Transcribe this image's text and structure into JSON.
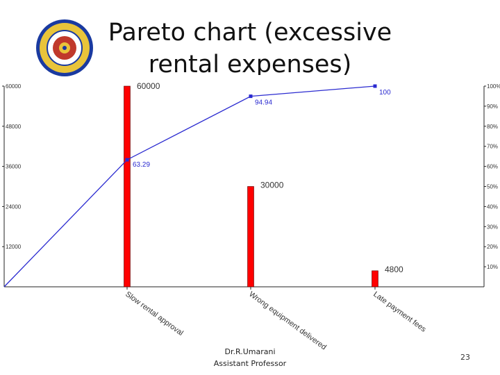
{
  "slide": {
    "title": "Pareto chart (excessive rental expenses)",
    "author": "Dr.R.Umarani",
    "role": "Assistant Professor",
    "page_number": "23"
  },
  "colors": {
    "bar": "#ff0000",
    "bar_edge": "#550000",
    "line": "#2a2ad0",
    "axis": "#222222"
  },
  "chart_data": {
    "type": "bar",
    "categories": [
      "Slow rental approval",
      "Wrong equipment delivered",
      "Late payment fees"
    ],
    "values": [
      60000,
      30000,
      4800
    ],
    "value_labels": [
      "60000",
      "30000",
      "4800"
    ],
    "cumulative_percent": [
      63.29,
      94.94,
      100
    ],
    "cumulative_labels": [
      "63.29",
      "94.94",
      "100"
    ],
    "ylim": [
      0,
      60000
    ],
    "y_ticks": [
      "60000",
      "48000",
      "36000",
      "24000",
      "12000"
    ],
    "y2lim": [
      0,
      100
    ],
    "y2_ticks": [
      "100%",
      "90%",
      "80%",
      "70%",
      "60%",
      "50%",
      "40%",
      "30%",
      "20%",
      "10%"
    ],
    "title": "",
    "xlabel": "",
    "ylabel": ""
  }
}
